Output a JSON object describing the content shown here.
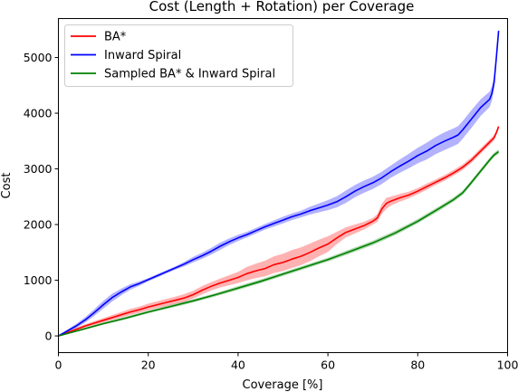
{
  "chart_data": {
    "type": "line",
    "title": "Cost (Length + Rotation) per Coverage",
    "xlabel": "Coverage [%]",
    "ylabel": "Cost",
    "xlim": [
      0,
      100
    ],
    "ylim": [
      -300,
      5700
    ],
    "xticks": [
      0,
      20,
      40,
      60,
      80,
      100
    ],
    "yticks": [
      0,
      1000,
      2000,
      3000,
      4000,
      5000
    ],
    "grid": false,
    "legend_position": "top-left",
    "series": [
      {
        "name": "BA*",
        "color": "#ff0000",
        "x": [
          0,
          2,
          4,
          6,
          8,
          10,
          12,
          14,
          16,
          18,
          20,
          22,
          24,
          26,
          28,
          30,
          32,
          34,
          36,
          38,
          40,
          42,
          44,
          46,
          48,
          50,
          52,
          54,
          56,
          58,
          60,
          62,
          64,
          66,
          68,
          70,
          71,
          72,
          73,
          74,
          76,
          78,
          80,
          82,
          84,
          86,
          88,
          90,
          92,
          94,
          96,
          97,
          97.5,
          98
        ],
        "y": [
          0,
          60,
          120,
          180,
          230,
          280,
          330,
          380,
          430,
          470,
          520,
          560,
          600,
          640,
          680,
          740,
          820,
          890,
          950,
          1000,
          1050,
          1120,
          1170,
          1210,
          1280,
          1320,
          1380,
          1430,
          1500,
          1580,
          1650,
          1760,
          1860,
          1920,
          1980,
          2060,
          2120,
          2280,
          2380,
          2420,
          2480,
          2530,
          2600,
          2680,
          2760,
          2840,
          2930,
          3030,
          3160,
          3320,
          3480,
          3560,
          3650,
          3760
        ],
        "band": [
          0,
          15,
          25,
          30,
          35,
          40,
          45,
          50,
          55,
          55,
          60,
          60,
          65,
          65,
          70,
          70,
          75,
          75,
          80,
          90,
          100,
          120,
          130,
          140,
          150,
          155,
          160,
          160,
          160,
          150,
          140,
          110,
          90,
          80,
          70,
          60,
          70,
          90,
          100,
          80,
          70,
          60,
          55,
          55,
          50,
          50,
          50,
          50,
          50,
          50,
          50,
          50,
          40,
          40
        ]
      },
      {
        "name": "Inward Spiral",
        "color": "#0000ff",
        "x": [
          0,
          2,
          4,
          6,
          8,
          10,
          12,
          14,
          16,
          18,
          20,
          22,
          24,
          26,
          28,
          30,
          32,
          34,
          36,
          38,
          40,
          42,
          44,
          46,
          48,
          50,
          52,
          54,
          56,
          58,
          60,
          62,
          64,
          66,
          68,
          70,
          72,
          74,
          76,
          78,
          80,
          82,
          84,
          86,
          88,
          89,
          90,
          92,
          94,
          96,
          96.5,
          97,
          97.5,
          98
        ],
        "y": [
          0,
          90,
          180,
          290,
          420,
          560,
          690,
          790,
          880,
          940,
          1010,
          1080,
          1150,
          1220,
          1290,
          1370,
          1440,
          1520,
          1610,
          1690,
          1760,
          1820,
          1890,
          1960,
          2020,
          2080,
          2140,
          2190,
          2250,
          2300,
          2350,
          2410,
          2500,
          2600,
          2680,
          2750,
          2840,
          2950,
          3050,
          3140,
          3240,
          3320,
          3420,
          3500,
          3570,
          3610,
          3700,
          3900,
          4100,
          4250,
          4350,
          4550,
          5000,
          5480
        ],
        "band": [
          0,
          20,
          40,
          50,
          60,
          70,
          70,
          60,
          50,
          40,
          30,
          30,
          30,
          30,
          40,
          50,
          55,
          60,
          65,
          60,
          55,
          50,
          50,
          50,
          55,
          60,
          60,
          60,
          70,
          80,
          90,
          100,
          110,
          110,
          110,
          110,
          110,
          110,
          120,
          130,
          140,
          150,
          155,
          160,
          160,
          160,
          160,
          160,
          150,
          140,
          130,
          110,
          80,
          60
        ]
      },
      {
        "name": "Sampled BA* & Inward Spiral",
        "color": "#008000",
        "x": [
          0,
          5,
          10,
          15,
          20,
          25,
          30,
          35,
          40,
          45,
          50,
          55,
          60,
          65,
          70,
          75,
          80,
          85,
          88,
          90,
          92,
          94,
          96,
          97,
          98
        ],
        "y": [
          0,
          110,
          220,
          320,
          430,
          530,
          630,
          740,
          860,
          980,
          1110,
          1240,
          1370,
          1520,
          1670,
          1850,
          2060,
          2300,
          2450,
          2570,
          2760,
          2960,
          3160,
          3250,
          3310
        ],
        "band": [
          0,
          15,
          20,
          25,
          25,
          30,
          30,
          30,
          35,
          35,
          35,
          35,
          35,
          40,
          40,
          40,
          40,
          40,
          40,
          40,
          40,
          40,
          40,
          40,
          40
        ]
      }
    ]
  }
}
